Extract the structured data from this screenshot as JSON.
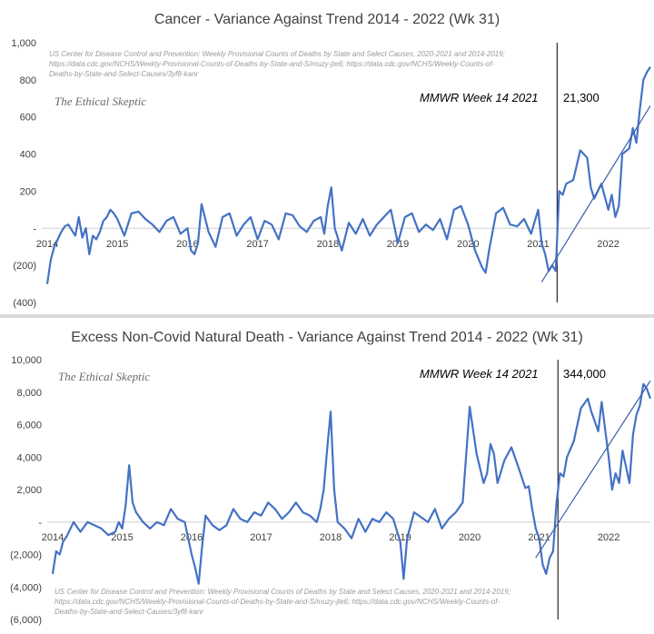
{
  "chart_data": [
    {
      "type": "line",
      "title": "Cancer  - Variance Against Trend  2014 - 2022 (Wk 31)",
      "source_lines": [
        "US Center for Disease Control and Prevention: Weekly  Provisional Counts of Deaths by State and Select Causes, 2020-2021 and 2014-2019;",
        "https://data.cdc.gov/NCHS/Weekly-Provisional-Counts-of-Deaths-by-State-and-S/muzy-jte6; https://data.cdc.gov/NCHS/Weekly-Counts-of-",
        "Deaths-by-State-and-Select-Causes/3yf8-kanr"
      ],
      "watermark": "The Ethical Skeptic",
      "annotation_label": "MMWR Week 14  2021",
      "annotation_value": "21,300",
      "ylim": [
        -400,
        1000
      ],
      "y_ticks": [
        {
          "value": 1000,
          "label": "1,000"
        },
        {
          "value": 800,
          "label": "800"
        },
        {
          "value": 600,
          "label": "600"
        },
        {
          "value": 400,
          "label": "400"
        },
        {
          "value": 200,
          "label": "200"
        },
        {
          "value": 0,
          "label": "-"
        },
        {
          "value": -200,
          "label": "(200)"
        },
        {
          "value": -400,
          "label": "(400)"
        }
      ],
      "xlim": [
        2014.0,
        2022.6
      ],
      "x_labels": [
        "2014",
        "2015",
        "2016",
        "2017",
        "2018",
        "2019",
        "2020",
        "2021",
        "2022"
      ],
      "x_label_positions": [
        2014.0,
        2015.0,
        2016.0,
        2017.0,
        2018.0,
        2019.0,
        2020.0,
        2021.0,
        2022.0
      ],
      "vline_x": 2021.27,
      "series": [
        {
          "color": "#4472c4",
          "x": [
            2014.0,
            2014.05,
            2014.1,
            2014.15,
            2014.2,
            2014.25,
            2014.3,
            2014.35,
            2014.4,
            2014.45,
            2014.5,
            2014.55,
            2014.6,
            2014.65,
            2014.7,
            2014.75,
            2014.8,
            2014.85,
            2014.9,
            2014.95,
            2015.0,
            2015.1,
            2015.2,
            2015.3,
            2015.4,
            2015.5,
            2015.6,
            2015.7,
            2015.8,
            2015.9,
            2016.0,
            2016.05,
            2016.1,
            2016.15,
            2016.2,
            2016.3,
            2016.4,
            2016.5,
            2016.6,
            2016.7,
            2016.8,
            2016.9,
            2017.0,
            2017.1,
            2017.2,
            2017.3,
            2017.4,
            2017.5,
            2017.6,
            2017.7,
            2017.8,
            2017.9,
            2017.95,
            2018.0,
            2018.05,
            2018.1,
            2018.2,
            2018.3,
            2018.4,
            2018.5,
            2018.6,
            2018.7,
            2018.8,
            2018.9,
            2019.0,
            2019.1,
            2019.2,
            2019.3,
            2019.4,
            2019.5,
            2019.6,
            2019.7,
            2019.8,
            2019.9,
            2020.0,
            2020.1,
            2020.2,
            2020.25,
            2020.3,
            2020.4,
            2020.5,
            2020.6,
            2020.7,
            2020.8,
            2020.9,
            2021.0,
            2021.05,
            2021.1,
            2021.15,
            2021.2,
            2021.25,
            2021.3,
            2021.35,
            2021.4,
            2021.5,
            2021.6,
            2021.7,
            2021.75,
            2021.8,
            2021.9,
            2022.0,
            2022.05,
            2022.1,
            2022.15,
            2022.2,
            2022.3,
            2022.35,
            2022.4,
            2022.45,
            2022.5,
            2022.55,
            2022.6
          ],
          "values": [
            -300,
            -170,
            -100,
            -60,
            -20,
            10,
            20,
            -10,
            -40,
            60,
            -50,
            0,
            -140,
            -40,
            -60,
            -20,
            40,
            60,
            100,
            80,
            50,
            -40,
            80,
            90,
            50,
            20,
            -20,
            40,
            60,
            -30,
            0,
            -120,
            -140,
            -80,
            130,
            -20,
            -100,
            60,
            80,
            -40,
            20,
            60,
            -60,
            40,
            20,
            -60,
            80,
            70,
            10,
            -20,
            40,
            60,
            -30,
            120,
            220,
            0,
            -120,
            30,
            -30,
            50,
            -40,
            20,
            60,
            100,
            -80,
            60,
            80,
            -20,
            20,
            -10,
            50,
            -60,
            100,
            120,
            20,
            -120,
            -210,
            -240,
            -120,
            80,
            110,
            20,
            10,
            50,
            -30,
            100,
            -80,
            -140,
            -230,
            -200,
            -230,
            200,
            180,
            240,
            260,
            420,
            380,
            220,
            160,
            240,
            100,
            180,
            60,
            120,
            400,
            430,
            540,
            460,
            640,
            800,
            840,
            870
          ]
        }
      ],
      "trendline": {
        "x": [
          2021.05,
          2022.6
        ],
        "values": [
          -290,
          660
        ]
      }
    },
    {
      "type": "line",
      "title": "Excess Non-Covid Natural Death - Variance Against Trend  2014 - 2022 (Wk 31)",
      "source_lines": [
        "US Center for Disease Control and Prevention: Weekly  Provisional Counts of Deaths by State and Select Causes, 2020-2021 and 2014-2019;",
        "https://data.cdc.gov/NCHS/Weekly-Provisional-Counts-of-Deaths-by-State-and-S/muzy-jte6; https://data.cdc.gov/NCHS/Weekly-Counts-of-",
        "Deaths-by-State-and-Select-Causes/3yf8-kanr"
      ],
      "watermark": "The Ethical Skeptic",
      "annotation_label": "MMWR Week 14  2021",
      "annotation_value": "344,000",
      "ylim": [
        -6000,
        10000
      ],
      "y_ticks": [
        {
          "value": 10000,
          "label": "10,000"
        },
        {
          "value": 8000,
          "label": "8,000"
        },
        {
          "value": 6000,
          "label": "6,000"
        },
        {
          "value": 4000,
          "label": "4,000"
        },
        {
          "value": 2000,
          "label": "2,000"
        },
        {
          "value": 0,
          "label": "-"
        },
        {
          "value": -2000,
          "label": "(2,000)"
        },
        {
          "value": -4000,
          "label": "(4,000)"
        },
        {
          "value": -6000,
          "label": "(6,000)"
        }
      ],
      "xlim": [
        2014.0,
        2022.6
      ],
      "x_labels": [
        "2014",
        "2015",
        "2016",
        "2017",
        "2018",
        "2019",
        "2020",
        "2021",
        "2022"
      ],
      "x_label_positions": [
        2014.0,
        2015.0,
        2016.0,
        2017.0,
        2018.0,
        2019.0,
        2020.0,
        2021.0,
        2022.0
      ],
      "vline_x": 2021.27,
      "series": [
        {
          "color": "#4472c4",
          "x": [
            2014.0,
            2014.05,
            2014.1,
            2014.15,
            2014.2,
            2014.3,
            2014.4,
            2014.5,
            2014.6,
            2014.7,
            2014.8,
            2014.9,
            2014.95,
            2015.0,
            2015.05,
            2015.1,
            2015.15,
            2015.2,
            2015.3,
            2015.4,
            2015.5,
            2015.6,
            2015.7,
            2015.8,
            2015.9,
            2016.0,
            2016.05,
            2016.1,
            2016.15,
            2016.2,
            2016.3,
            2016.4,
            2016.5,
            2016.6,
            2016.7,
            2016.8,
            2016.9,
            2017.0,
            2017.1,
            2017.2,
            2017.3,
            2017.4,
            2017.5,
            2017.6,
            2017.7,
            2017.8,
            2017.85,
            2017.9,
            2017.95,
            2018.0,
            2018.05,
            2018.1,
            2018.2,
            2018.3,
            2018.4,
            2018.5,
            2018.6,
            2018.7,
            2018.8,
            2018.9,
            2019.0,
            2019.05,
            2019.1,
            2019.2,
            2019.3,
            2019.4,
            2019.5,
            2019.6,
            2019.7,
            2019.8,
            2019.9,
            2020.0,
            2020.1,
            2020.2,
            2020.25,
            2020.3,
            2020.35,
            2020.4,
            2020.5,
            2020.6,
            2020.7,
            2020.8,
            2020.85,
            2020.9,
            2020.95,
            2021.0,
            2021.05,
            2021.1,
            2021.15,
            2021.2,
            2021.25,
            2021.3,
            2021.35,
            2021.4,
            2021.5,
            2021.6,
            2021.7,
            2021.75,
            2021.8,
            2021.85,
            2021.9,
            2022.0,
            2022.05,
            2022.1,
            2022.15,
            2022.2,
            2022.3,
            2022.35,
            2022.4,
            2022.45,
            2022.5,
            2022.55,
            2022.6
          ],
          "values": [
            -3200,
            -1800,
            -2000,
            -1200,
            -900,
            0,
            -600,
            0,
            -200,
            -400,
            -800,
            -600,
            0,
            -400,
            1000,
            3500,
            1200,
            600,
            0,
            -400,
            0,
            -200,
            800,
            200,
            0,
            -2000,
            -2800,
            -3800,
            -1500,
            400,
            -200,
            -500,
            -200,
            800,
            200,
            0,
            600,
            400,
            1200,
            800,
            200,
            600,
            1200,
            600,
            400,
            0,
            800,
            2000,
            4500,
            6800,
            2000,
            0,
            -400,
            -1000,
            200,
            -600,
            200,
            0,
            600,
            200,
            -1200,
            -3500,
            -1000,
            600,
            300,
            0,
            800,
            -400,
            200,
            600,
            1200,
            7100,
            4200,
            2400,
            3000,
            4800,
            4200,
            2400,
            3800,
            4600,
            3400,
            2100,
            2200,
            800,
            -400,
            -1000,
            -2600,
            -3200,
            -2200,
            -1800,
            1200,
            3000,
            2800,
            4000,
            5000,
            7000,
            7600,
            6800,
            6200,
            5600,
            7400,
            4000,
            2000,
            3000,
            2400,
            4400,
            2400,
            5400,
            6600,
            7200,
            8500,
            8200,
            7600
          ]
        }
      ],
      "trendline": {
        "x": [
          2020.95,
          2022.6
        ],
        "values": [
          -2200,
          8700
        ]
      }
    }
  ]
}
